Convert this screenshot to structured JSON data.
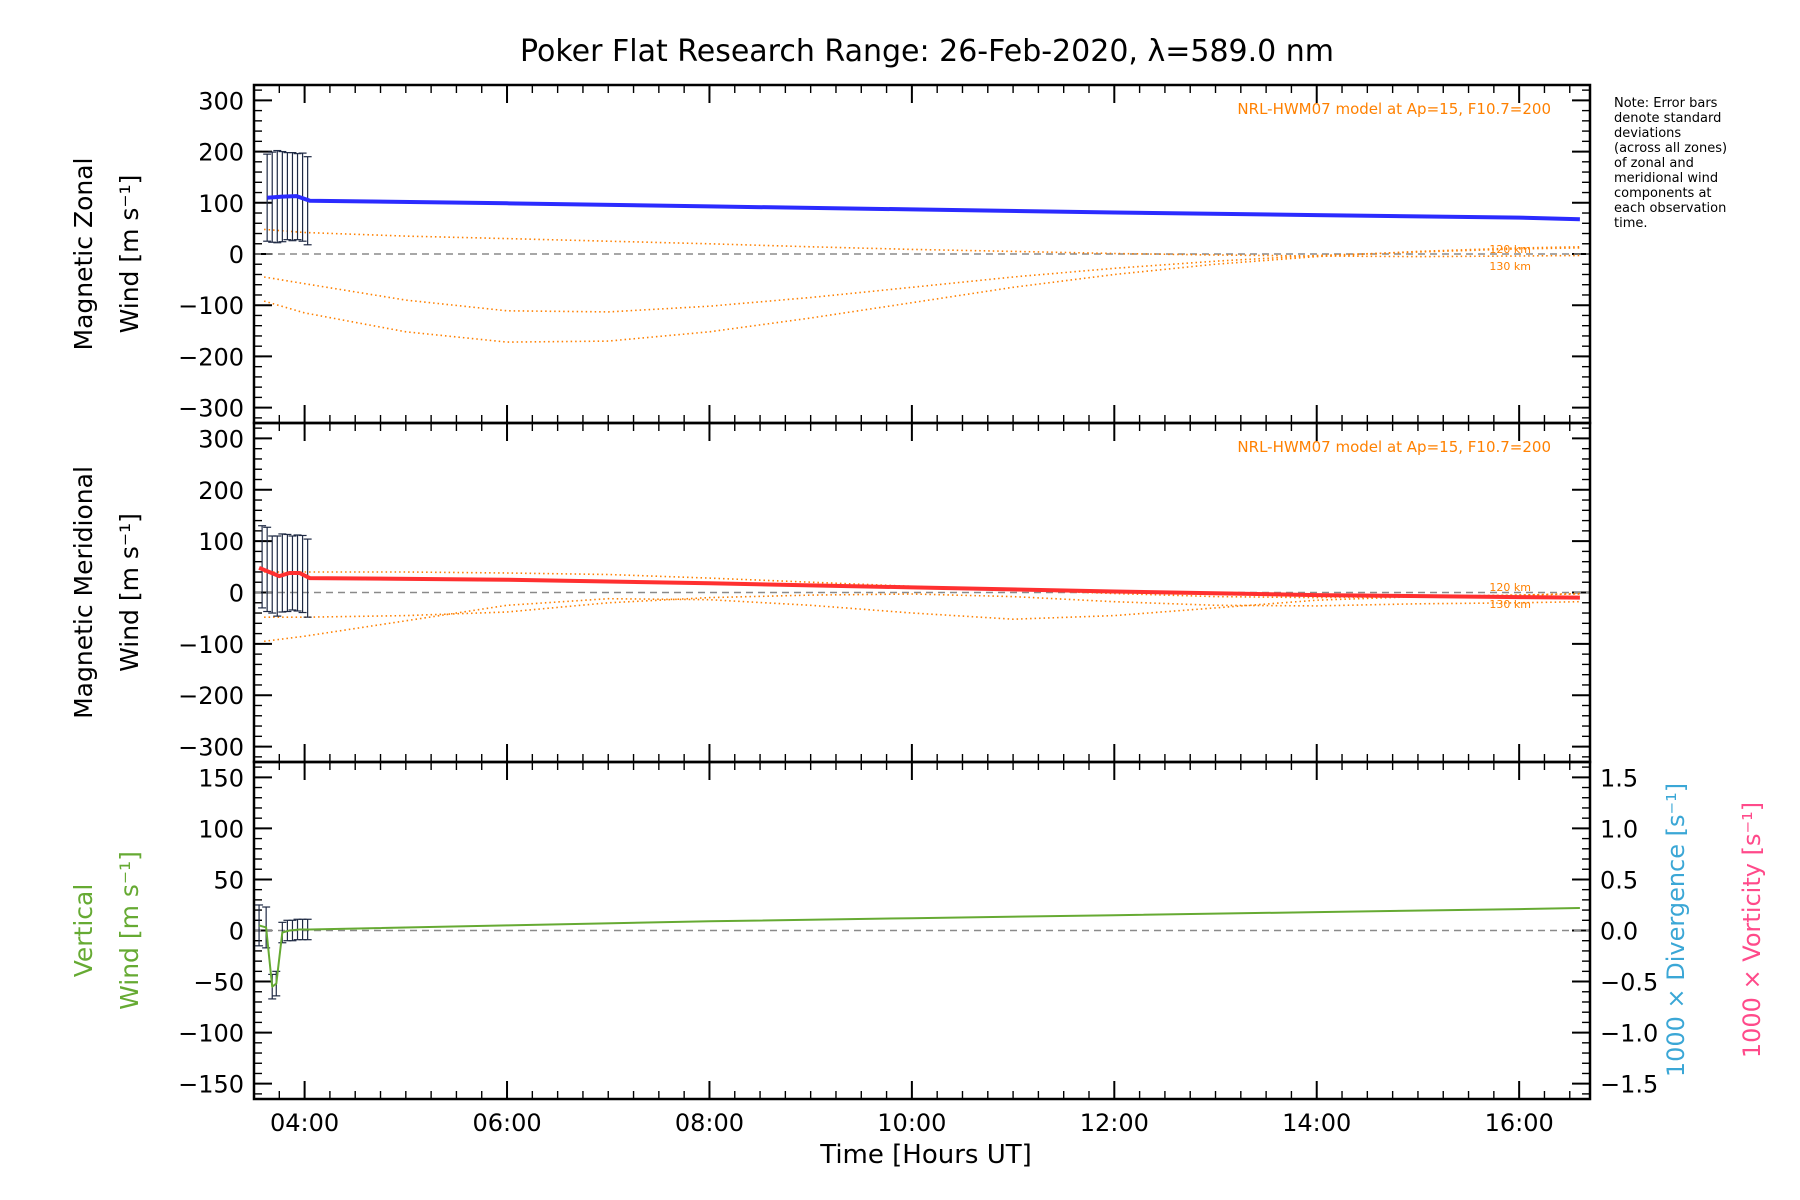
{
  "title": "Poker Flat Research Range: 26-Feb-2020, λ=589.0 nm",
  "note": [
    "Note: Error bars",
    "denote standard",
    "deviations",
    "(across all zones)",
    "of zonal and",
    "meridional wind",
    "components at",
    "each observation",
    "time."
  ],
  "chart_data": [
    {
      "type": "line",
      "panel": "zonal",
      "ylabel_lines": [
        "Magnetic Zonal",
        "Wind [m s⁻¹]"
      ],
      "ylim": [
        -330,
        330
      ],
      "yticks": [
        300,
        200,
        100,
        0,
        -100,
        -200,
        -300
      ],
      "tick_labels": [
        "300",
        "200",
        "100",
        "0",
        "−100",
        "−200",
        "−300"
      ],
      "model_label": "NRL-HWM07 model at Ap=15, F10.7=200",
      "altitude_labels": [
        "120 km",
        "130 km"
      ],
      "series": [
        {
          "kind": "measured",
          "color": "#2b2bff",
          "x": [
            3.63,
            3.78,
            3.92,
            4.05,
            6.0,
            8.0,
            10.0,
            12.0,
            14.0,
            16.0,
            16.6
          ],
          "y": [
            110,
            112,
            113,
            104,
            99,
            93,
            87,
            81,
            76,
            71,
            68
          ]
        },
        {
          "kind": "model",
          "x": [
            3.6,
            4.0,
            5.0,
            6.0,
            7.0,
            8.0,
            9.0,
            10.0,
            11.0,
            12.0,
            13.0,
            14.0,
            15.0,
            16.0,
            16.6
          ],
          "y": [
            -45,
            -58,
            -90,
            -111,
            -113,
            -102,
            -85,
            -65,
            -45,
            -28,
            -14,
            -3,
            4,
            10,
            12
          ]
        },
        {
          "kind": "model",
          "x": [
            3.6,
            4.0,
            5.0,
            6.0,
            7.0,
            8.0,
            9.0,
            10.0,
            11.0,
            12.0,
            13.0,
            14.0,
            15.0,
            16.0,
            16.6
          ],
          "y": [
            -92,
            -115,
            -152,
            -172,
            -170,
            -152,
            -125,
            -95,
            -65,
            -40,
            -20,
            -5,
            5,
            12,
            14
          ]
        },
        {
          "kind": "model",
          "x": [
            3.6,
            4.0,
            5.0,
            6.0,
            7.0,
            8.0,
            9.0,
            10.0,
            11.0,
            12.0,
            13.0,
            14.0,
            15.0,
            16.0,
            16.6
          ],
          "y": [
            48,
            42,
            35,
            30,
            25,
            20,
            14,
            9,
            5,
            1,
            -2,
            -4,
            -5,
            -4,
            -3
          ]
        }
      ],
      "error_x": [
        3.63,
        3.68,
        3.73,
        3.78,
        3.83,
        3.88,
        3.93,
        3.98,
        4.03
      ],
      "error_y": [
        110,
        111,
        112,
        112,
        113,
        112,
        112,
        111,
        104
      ],
      "error_sd": [
        85,
        88,
        90,
        88,
        85,
        86,
        84,
        86,
        86
      ]
    },
    {
      "type": "line",
      "panel": "meridional",
      "ylabel_lines": [
        "Magnetic Meridional",
        "Wind [m s⁻¹]"
      ],
      "ylim": [
        -330,
        330
      ],
      "yticks": [
        300,
        200,
        100,
        0,
        -100,
        -200,
        -300
      ],
      "tick_labels": [
        "300",
        "200",
        "100",
        "0",
        "−100",
        "−200",
        "−300"
      ],
      "model_label": "NRL-HWM07 model at Ap=15, F10.7=200",
      "altitude_labels": [
        "120 km",
        "130 km"
      ],
      "series": [
        {
          "kind": "measured",
          "color": "#ff3030",
          "x": [
            3.55,
            3.65,
            3.75,
            3.85,
            3.95,
            4.05,
            6.0,
            8.0,
            10.0,
            12.0,
            14.0,
            16.0,
            16.6
          ],
          "y": [
            48,
            40,
            32,
            38,
            38,
            28,
            25,
            18,
            10,
            2,
            -5,
            -9,
            -10
          ]
        },
        {
          "kind": "model",
          "x": [
            3.6,
            4.0,
            5.0,
            6.0,
            7.0,
            8.0,
            9.0,
            10.0,
            11.0,
            12.0,
            13.0,
            14.0,
            15.0,
            16.0,
            16.6
          ],
          "y": [
            -95,
            -85,
            -55,
            -25,
            -12,
            -14,
            -25,
            -40,
            -52,
            -45,
            -30,
            -15,
            -8,
            -5,
            -2
          ]
        },
        {
          "kind": "model",
          "x": [
            3.6,
            4.0,
            5.0,
            6.0,
            7.0,
            8.0,
            9.0,
            10.0,
            11.0,
            12.0,
            13.0,
            14.0,
            15.0,
            16.0,
            16.6
          ],
          "y": [
            -48,
            -48,
            -45,
            -38,
            -20,
            -10,
            -5,
            -3,
            -8,
            -18,
            -25,
            -26,
            -22,
            -20,
            -18
          ]
        },
        {
          "kind": "model",
          "x": [
            3.6,
            4.0,
            5.0,
            6.0,
            7.0,
            8.0,
            9.0,
            10.0,
            11.0,
            12.0,
            13.0,
            14.0,
            15.0,
            16.0,
            16.6
          ],
          "y": [
            40,
            40,
            40,
            38,
            35,
            28,
            20,
            12,
            5,
            -2,
            -8,
            -10,
            -8,
            -5,
            -3
          ]
        }
      ],
      "error_x": [
        3.58,
        3.63,
        3.68,
        3.73,
        3.78,
        3.83,
        3.88,
        3.93,
        3.98,
        4.03
      ],
      "error_y": [
        50,
        45,
        35,
        32,
        38,
        38,
        38,
        38,
        36,
        28
      ],
      "error_sd": [
        80,
        82,
        75,
        78,
        76,
        75,
        72,
        74,
        75,
        76
      ]
    },
    {
      "type": "line",
      "panel": "vertical",
      "ylabel_lines": [
        "Vertical",
        "Wind [m s⁻¹]"
      ],
      "ylim": [
        -165,
        165
      ],
      "yticks": [
        150,
        100,
        50,
        0,
        -50,
        -100,
        -150
      ],
      "tick_labels": [
        "150",
        "100",
        "50",
        "0",
        "−50",
        "−100",
        "−150"
      ],
      "right_ylim": [
        -1.65,
        1.65
      ],
      "right_yticks": [
        1.5,
        1.0,
        0.5,
        0.0,
        -0.5,
        -1.0,
        -1.5
      ],
      "right_tick_labels": [
        "1.5",
        "1.0",
        "0.5",
        "0.0",
        "−0.5",
        "−1.0",
        "−1.5"
      ],
      "right_labels": [
        "1000 × Divergence [s⁻¹]",
        "1000 × Vorticity [s⁻¹]"
      ],
      "series": [
        {
          "kind": "measured",
          "color": "#66aa33",
          "x": [
            3.55,
            3.62,
            3.68,
            3.72,
            3.78,
            3.85,
            3.95,
            4.05,
            6.0,
            8.0,
            10.0,
            12.0,
            14.0,
            16.0,
            16.6
          ],
          "y": [
            5,
            3,
            -55,
            -52,
            -2,
            0,
            1,
            1,
            5,
            9,
            12,
            15,
            18,
            21,
            22
          ]
        }
      ],
      "error_x": [
        3.55,
        3.62,
        3.68,
        3.72,
        3.78,
        3.83,
        3.88,
        3.93,
        3.98,
        4.03
      ],
      "error_y": [
        5,
        3,
        -55,
        -52,
        -2,
        0,
        0,
        1,
        1,
        1
      ],
      "error_sd": [
        20,
        20,
        12,
        12,
        10,
        10,
        10,
        10,
        10,
        10
      ]
    }
  ],
  "x_axis": {
    "xlabel": "Time [Hours UT]",
    "xlim": [
      3.5,
      16.7
    ],
    "xticks": [
      4,
      6,
      8,
      10,
      12,
      14,
      16
    ],
    "tick_labels": [
      "04:00",
      "06:00",
      "08:00",
      "10:00",
      "12:00",
      "14:00",
      "16:00"
    ]
  },
  "colors": {
    "model": "#ff8000",
    "zero_line": "#8a8a8a",
    "zonal_wind": "#2b2bff",
    "meridional_wind": "#ff3030",
    "vertical_wind": "#66aa33",
    "divergence": "#3ba7d6",
    "vorticity": "#ff4a8a",
    "error_bars": "#1f2a44"
  }
}
